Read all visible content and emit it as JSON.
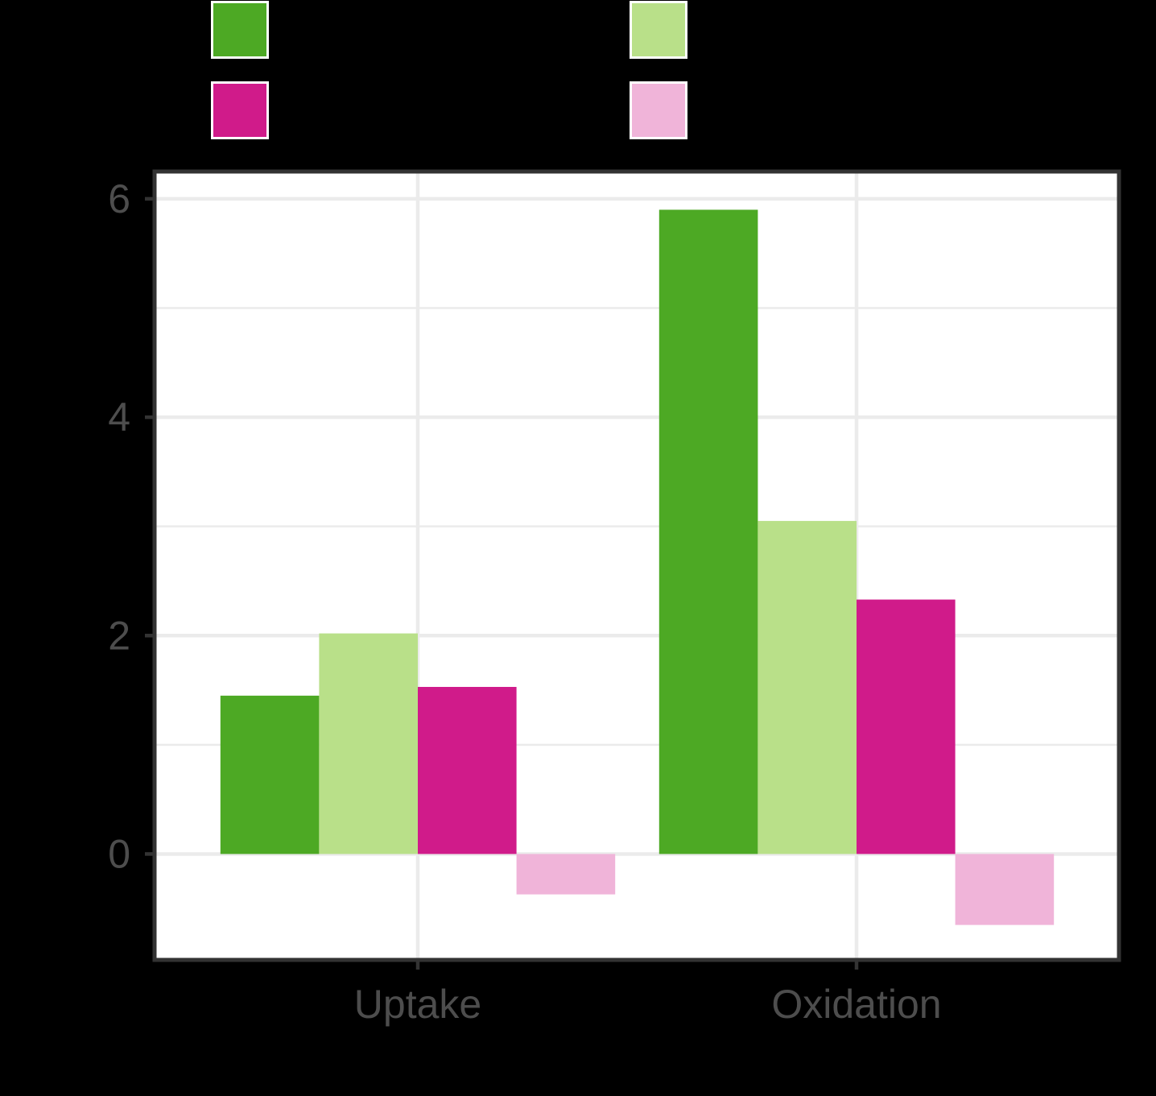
{
  "chart_data": {
    "type": "bar",
    "categories": [
      "Uptake",
      "Oxidation"
    ],
    "series": [
      {
        "color": "#4da924",
        "values": [
          1.45,
          5.9
        ]
      },
      {
        "color": "#b9e089",
        "values": [
          2.02,
          3.05
        ]
      },
      {
        "color": "#d01b8a",
        "values": [
          1.53,
          2.33
        ]
      },
      {
        "color": "#f0b4d9",
        "values": [
          -0.37,
          -0.65
        ]
      }
    ],
    "ylim": [
      -0.97,
      6.25
    ],
    "yticks": [
      0,
      2,
      4,
      6
    ],
    "ytick_labels": [
      "0",
      "2",
      "4",
      "6"
    ],
    "ygrid_minor": [
      1,
      3,
      5
    ],
    "grid": true,
    "legend": "top",
    "title": "",
    "xlabel": "",
    "ylabel": "",
    "colors": {
      "background": "#000000",
      "panel": "#ffffff",
      "grid": "#ebebeb",
      "axis_text": "#4d4d4d",
      "border": "#333333"
    }
  }
}
